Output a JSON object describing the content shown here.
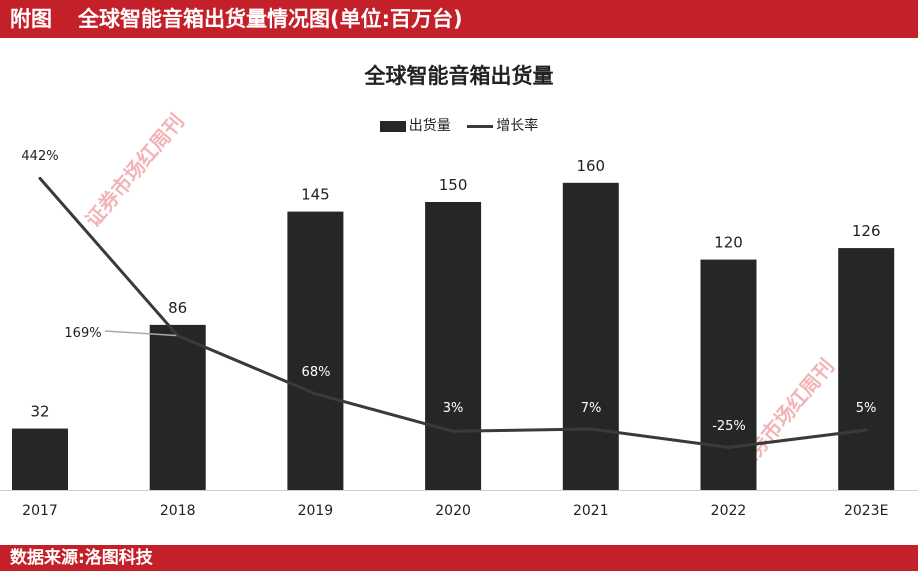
{
  "header": {
    "label": "附图",
    "title": "全球智能音箱出货量情况图(单位:百万台)"
  },
  "footer": {
    "source": "数据来源:洛图科技"
  },
  "watermark": "证券市场红周刊",
  "colors": {
    "brand_red": "#c4202a",
    "bar": "#262626",
    "line": "#3a3a3a"
  },
  "chart_data": {
    "type": "bar+line",
    "title": "全球智能音箱出货量",
    "legend_position": "top",
    "grid": false,
    "categories": [
      "2017",
      "2018",
      "2019",
      "2020",
      "2021",
      "2022",
      "2023E"
    ],
    "series": [
      {
        "name": "出货量",
        "type": "bar",
        "values": [
          32,
          86,
          145,
          150,
          160,
          120,
          126
        ],
        "labels": [
          "32",
          "86",
          "145",
          "150",
          "160",
          "120",
          "126"
        ]
      },
      {
        "name": "增长率",
        "type": "line",
        "values": [
          442,
          169,
          68,
          3,
          7,
          -25,
          5
        ],
        "labels": [
          "442%",
          "169%",
          "68%",
          "3%",
          "7%",
          "-25%",
          "5%"
        ]
      }
    ]
  }
}
